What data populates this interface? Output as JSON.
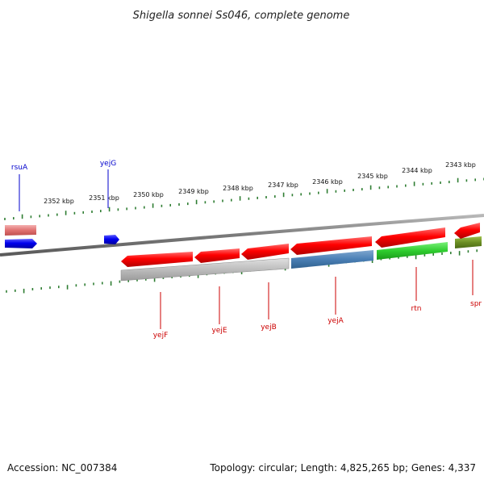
{
  "title": "Shigella sonnei Ss046, complete genome",
  "footer": {
    "accession": "Accession: NC_007384",
    "summary": "Topology: circular; Length: 4,825,265 bp; Genes: 4,337"
  },
  "colors": {
    "backbone": "#888888",
    "ticks": "#2e7d32",
    "forward_gene": "#0000ee",
    "reverse_gene": "#ee0000",
    "forward_label": "#0000cc",
    "reverse_label": "#cc0000"
  },
  "kbp_labels": [
    "2352 kbp",
    "2351 kbp",
    "2350 kbp",
    "2349 kbp",
    "2348 kbp",
    "2347 kbp",
    "2346 kbp",
    "2345 kbp",
    "2344 kbp",
    "2343 kbp"
  ],
  "forward_genes": [
    {
      "label": "rsuA"
    },
    {
      "label": "yejG"
    }
  ],
  "reverse_genes": [
    {
      "label": "yejF"
    },
    {
      "label": "yejE"
    },
    {
      "label": "yejB"
    },
    {
      "label": "yejA"
    },
    {
      "label": "rtn"
    },
    {
      "label": "spr"
    }
  ]
}
